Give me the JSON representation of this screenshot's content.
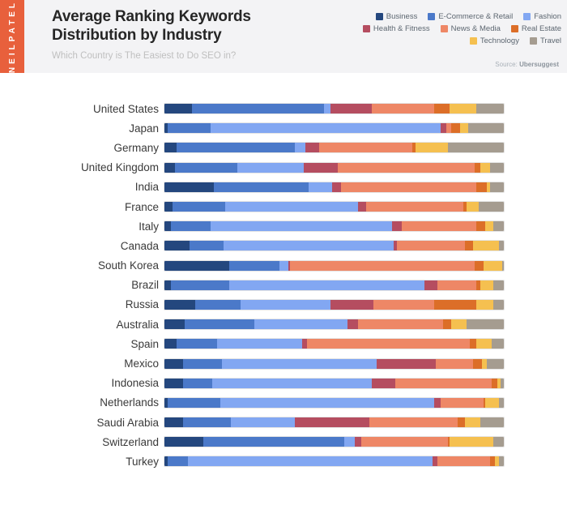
{
  "brand": {
    "name": "NEILPATEL",
    "color": "#E8603C"
  },
  "header": {
    "title_line1": "Average Ranking Keywords",
    "title_line2": "Distribution by Industry",
    "subtitle": "Which Country is The Easiest to Do SEO in?",
    "source_prefix": "Source:",
    "source_name": "Ubersuggest"
  },
  "legend": {
    "rows": [
      [
        "Business",
        "E-Commerce & Retail",
        "Fashion"
      ],
      [
        "Health & Fitness",
        "News & Media",
        "Real Estate"
      ],
      [
        "Technology",
        "Travel"
      ]
    ]
  },
  "chart_data": {
    "type": "bar",
    "orientation": "horizontal",
    "stacked": true,
    "unit": "percent",
    "xlim": [
      0,
      100
    ],
    "grid": false,
    "legend_position": "top-right",
    "title": "Average Ranking Keywords Distribution by Industry",
    "subtitle": "Which Country is The Easiest to Do SEO in?",
    "source": "Ubersuggest",
    "categories": [
      "United States",
      "Japan",
      "Germany",
      "United Kingdom",
      "India",
      "France",
      "Italy",
      "Canada",
      "South Korea",
      "Brazil",
      "Russia",
      "Australia",
      "Spain",
      "Mexico",
      "Indonesia",
      "Netherlands",
      "Saudi Arabia",
      "Switzerland",
      "Turkey"
    ],
    "series": [
      {
        "name": "Business",
        "color": "#24477E",
        "values": [
          8,
          1,
          3.5,
          3,
          14.5,
          2.5,
          2,
          7.5,
          19,
          2,
          9,
          6,
          3.5,
          5.5,
          5.5,
          1,
          5.5,
          11.5,
          1
        ]
      },
      {
        "name": "E-Commerce & Retail",
        "color": "#4B79C9",
        "values": [
          39,
          12.5,
          35,
          18.5,
          28,
          15.5,
          11.5,
          10,
          15,
          17,
          13.5,
          20.5,
          12,
          11.5,
          8.5,
          15.5,
          14,
          41.5,
          6
        ]
      },
      {
        "name": "Fashion",
        "color": "#82A7F2",
        "values": [
          2,
          68,
          3,
          19.5,
          7,
          39,
          53.5,
          50,
          2.5,
          57.5,
          26.5,
          27.5,
          25,
          45.5,
          47,
          63,
          19,
          3,
          72
        ]
      },
      {
        "name": "Health & Fitness",
        "color": "#B54D60",
        "values": [
          12,
          1.5,
          4,
          10,
          2.5,
          2.5,
          3,
          1,
          0.5,
          4,
          12.5,
          3,
          1.5,
          17.5,
          7,
          2,
          22,
          2,
          1.5
        ]
      },
      {
        "name": "News & Media",
        "color": "#EE8766",
        "values": [
          18.5,
          1.5,
          27.5,
          40.5,
          40,
          28.5,
          22,
          20,
          54.5,
          11.5,
          18,
          25,
          48,
          11,
          28.5,
          12.5,
          26,
          25.5,
          15.5
        ]
      },
      {
        "name": "Real Estate",
        "color": "#DC6E28",
        "values": [
          4.5,
          2.5,
          1,
          1.5,
          3,
          1,
          2.5,
          2.5,
          2.5,
          1,
          12.5,
          2.5,
          2,
          2.5,
          1.5,
          0.5,
          2,
          0.5,
          1.5
        ]
      },
      {
        "name": "Technology",
        "color": "#F5C050",
        "values": [
          8,
          2.5,
          9.5,
          3,
          1,
          3.5,
          2.5,
          7.5,
          5.5,
          4,
          5,
          4.5,
          4.5,
          1.5,
          1,
          4,
          4.5,
          13,
          1
        ]
      },
      {
        "name": "Travel",
        "color": "#A59C90",
        "values": [
          8,
          10.5,
          16.5,
          4,
          4,
          7.5,
          3,
          1.5,
          0.5,
          3,
          3,
          11,
          3.5,
          5,
          1,
          1.5,
          7,
          3,
          1.5
        ]
      }
    ]
  }
}
